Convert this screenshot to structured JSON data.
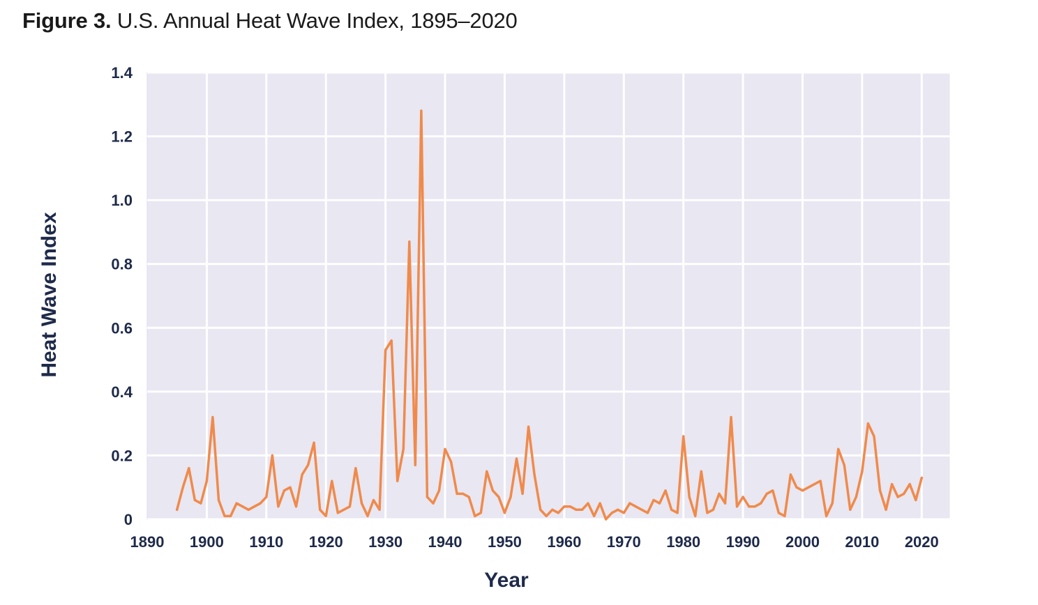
{
  "figure": {
    "label": "Figure 3.",
    "title": "U.S. Annual Heat Wave Index, 1895–2020"
  },
  "colors": {
    "plot_background": "#e8e7f2",
    "gridline": "#ffffff",
    "line": "#f08a4b",
    "axis_text": "#1e2a4a"
  },
  "chart_data": {
    "type": "line",
    "title": "U.S. Annual Heat Wave Index, 1895–2020",
    "xlabel": "Year",
    "ylabel": "Heat Wave Index",
    "xlim": [
      1890,
      2025
    ],
    "ylim": [
      0,
      1.4
    ],
    "x_ticks": [
      1890,
      1900,
      1910,
      1920,
      1930,
      1940,
      1950,
      1960,
      1970,
      1980,
      1990,
      2000,
      2010,
      2020
    ],
    "y_ticks": [
      0,
      0.2,
      0.4,
      0.6,
      0.8,
      1.0,
      1.2,
      1.4
    ],
    "y_tick_labels": [
      "0",
      "0.2",
      "0.4",
      "0.6",
      "0.8",
      "1.0",
      "1.2",
      "1.4"
    ],
    "grid": true,
    "series": [
      {
        "x": [
          1895,
          1896,
          1897,
          1898,
          1899,
          1900,
          1901,
          1902,
          1903,
          1904,
          1905,
          1906,
          1907,
          1908,
          1909,
          1910,
          1911,
          1912,
          1913,
          1914,
          1915,
          1916,
          1917,
          1918,
          1919,
          1920,
          1921,
          1922,
          1923,
          1924,
          1925,
          1926,
          1927,
          1928,
          1929,
          1930,
          1931,
          1932,
          1933,
          1934,
          1935,
          1936,
          1937,
          1938,
          1939,
          1940,
          1941,
          1942,
          1943,
          1944,
          1945,
          1946,
          1947,
          1948,
          1949,
          1950,
          1951,
          1952,
          1953,
          1954,
          1955,
          1956,
          1957,
          1958,
          1959,
          1960,
          1961,
          1962,
          1963,
          1964,
          1965,
          1966,
          1967,
          1968,
          1969,
          1970,
          1971,
          1972,
          1973,
          1974,
          1975,
          1976,
          1977,
          1978,
          1979,
          1980,
          1981,
          1982,
          1983,
          1984,
          1985,
          1986,
          1987,
          1988,
          1989,
          1990,
          1991,
          1992,
          1993,
          1994,
          1995,
          1996,
          1997,
          1998,
          1999,
          2000,
          2001,
          2002,
          2003,
          2004,
          2005,
          2006,
          2007,
          2008,
          2009,
          2010,
          2011,
          2012,
          2013,
          2014,
          2015,
          2016,
          2017,
          2018,
          2019,
          2020
        ],
        "values": [
          0.03,
          0.1,
          0.16,
          0.06,
          0.05,
          0.12,
          0.32,
          0.06,
          0.01,
          0.01,
          0.05,
          0.04,
          0.03,
          0.04,
          0.05,
          0.07,
          0.2,
          0.04,
          0.09,
          0.1,
          0.04,
          0.14,
          0.17,
          0.24,
          0.03,
          0.01,
          0.12,
          0.02,
          0.03,
          0.04,
          0.16,
          0.05,
          0.01,
          0.06,
          0.03,
          0.53,
          0.56,
          0.12,
          0.22,
          0.87,
          0.17,
          1.28,
          0.07,
          0.05,
          0.09,
          0.22,
          0.18,
          0.08,
          0.08,
          0.07,
          0.01,
          0.02,
          0.15,
          0.09,
          0.07,
          0.02,
          0.07,
          0.19,
          0.08,
          0.29,
          0.14,
          0.03,
          0.01,
          0.03,
          0.02,
          0.04,
          0.04,
          0.03,
          0.03,
          0.05,
          0.01,
          0.05,
          0.0,
          0.02,
          0.03,
          0.02,
          0.05,
          0.04,
          0.03,
          0.02,
          0.06,
          0.05,
          0.09,
          0.03,
          0.02,
          0.26,
          0.07,
          0.01,
          0.15,
          0.02,
          0.03,
          0.08,
          0.05,
          0.32,
          0.04,
          0.07,
          0.04,
          0.04,
          0.05,
          0.08,
          0.09,
          0.02,
          0.01,
          0.14,
          0.1,
          0.09,
          0.1,
          0.11,
          0.12,
          0.01,
          0.05,
          0.22,
          0.17,
          0.03,
          0.07,
          0.15,
          0.3,
          0.26,
          0.09,
          0.03,
          0.11,
          0.07,
          0.08,
          0.11,
          0.06,
          0.13
        ]
      }
    ]
  }
}
